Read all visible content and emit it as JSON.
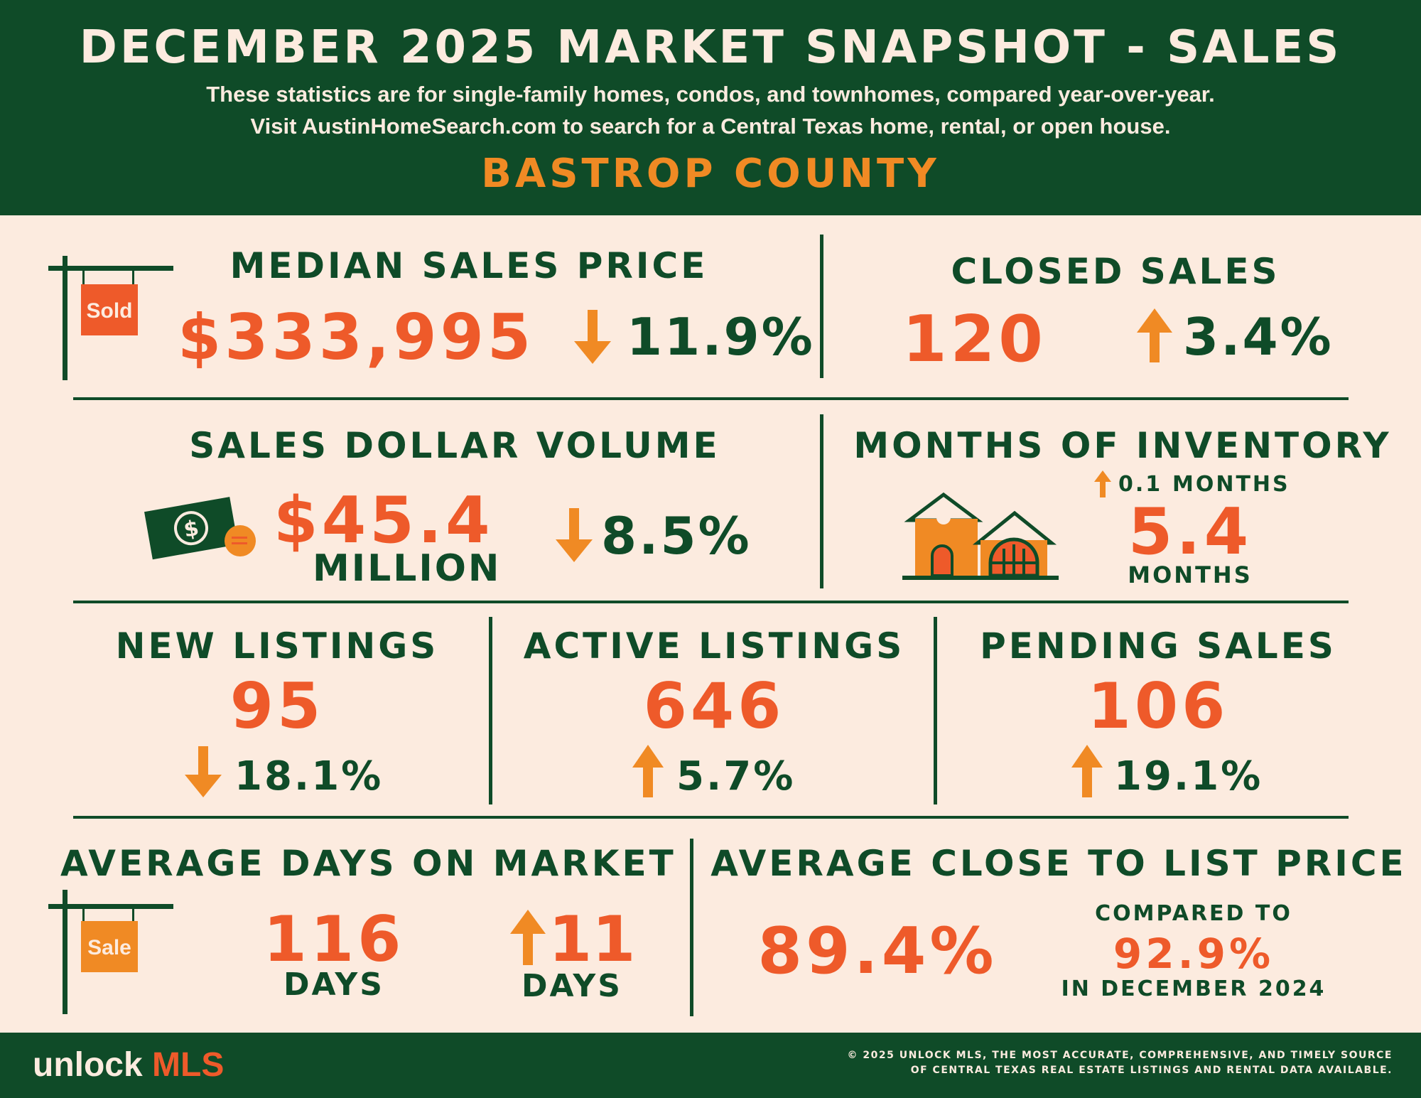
{
  "header": {
    "title": "DECEMBER 2025 MARKET SNAPSHOT - SALES",
    "subtitle_line1": "These statistics are for single-family homes, condos, and townhomes, compared year-over-year.",
    "subtitle_line2": "Visit AustinHomeSearch.com to search for a Central Texas home, rental, or open house.",
    "county": "BASTROP COUNTY"
  },
  "median_sales_price": {
    "label": "MEDIAN SALES PRICE",
    "value": "$333,995",
    "direction": "down",
    "change": "11.9%",
    "sign_text": "Sold"
  },
  "closed_sales": {
    "label": "CLOSED SALES",
    "value": "120",
    "direction": "up",
    "change": "3.4%"
  },
  "sales_dollar_volume": {
    "label": "SALES DOLLAR VOLUME",
    "value": "$45.4",
    "unit": "MILLION",
    "direction": "down",
    "change": "8.5%"
  },
  "months_of_inventory": {
    "label": "MONTHS OF INVENTORY",
    "change_value": "0.1",
    "change_unit": "MONTHS",
    "direction": "up",
    "value": "5.4",
    "unit": "MONTHS"
  },
  "new_listings": {
    "label": "NEW LISTINGS",
    "value": "95",
    "direction": "down",
    "change": "18.1%"
  },
  "active_listings": {
    "label": "ACTIVE LISTINGS",
    "value": "646",
    "direction": "up",
    "change": "5.7%"
  },
  "pending_sales": {
    "label": "PENDING SALES",
    "value": "106",
    "direction": "up",
    "change": "19.1%"
  },
  "average_days_on_market": {
    "label": "AVERAGE DAYS ON MARKET",
    "value": "116",
    "unit": "DAYS",
    "direction": "up",
    "change": "11",
    "change_unit": "DAYS",
    "sign_text": "Sale"
  },
  "average_close_to_list": {
    "label": "AVERAGE CLOSE TO LIST PRICE",
    "value": "89.4%",
    "compared_label": "COMPARED TO",
    "compared_value": "92.9%",
    "compared_period": "IN DECEMBER 2024"
  },
  "footer": {
    "logo_text": "unlock",
    "logo_accent": "MLS",
    "copyright_line1": "© 2025 UNLOCK MLS, THE MOST ACCURATE, COMPREHENSIVE, AND TIMELY SOURCE",
    "copyright_line2": "OF CENTRAL TEXAS REAL ESTATE LISTINGS AND RENTAL DATA AVAILABLE."
  },
  "colors": {
    "dark_green": "#0f4b28",
    "cream": "#fcebdf",
    "orange_red": "#ee5a2a",
    "amber": "#f08a24"
  }
}
